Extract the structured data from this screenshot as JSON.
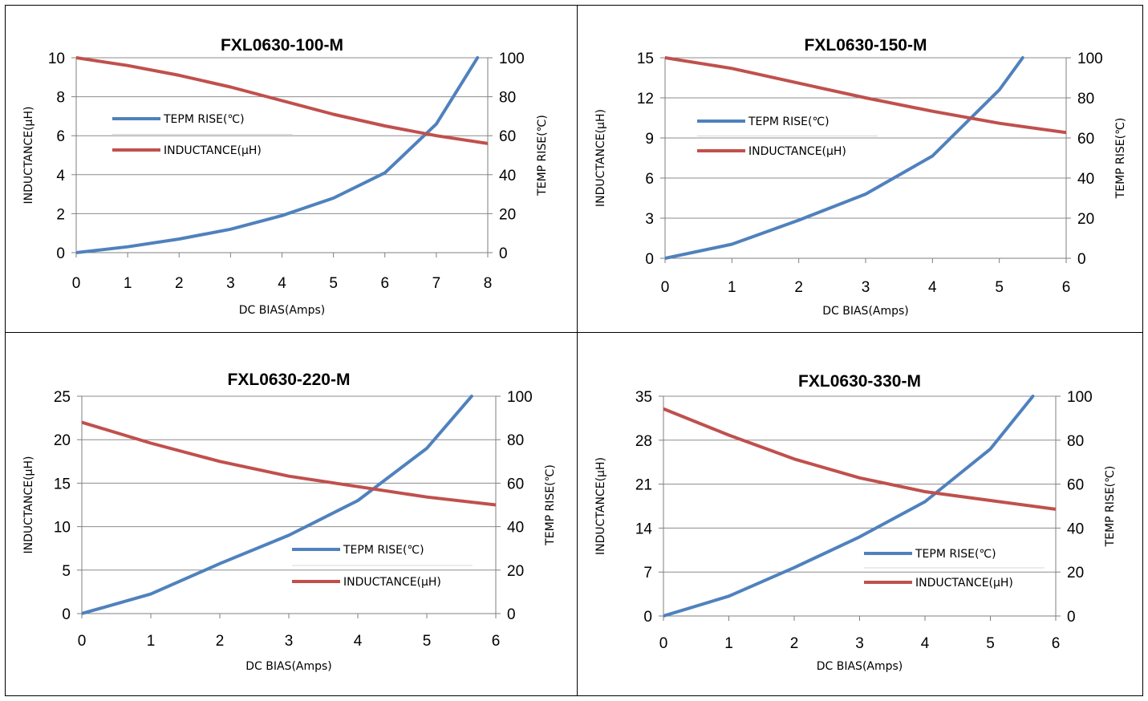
{
  "chart_data": [
    {
      "type": "line",
      "title": "FXL0630-100-M",
      "xlabel": "DC  BIAS(Amps)",
      "ylabel_left": "INDUCTANCE(µH)",
      "ylabel_right": "TEMP RISE(℃)",
      "xlim": [
        0,
        8
      ],
      "x_ticks": [
        0,
        1,
        2,
        3,
        4,
        5,
        6,
        7,
        8
      ],
      "ylim_left": [
        0,
        10
      ],
      "y_ticks_left": [
        0,
        2,
        4,
        6,
        8,
        10
      ],
      "ylim_right": [
        0,
        100
      ],
      "y_ticks_right": [
        0,
        20,
        40,
        60,
        80,
        100
      ],
      "grid": true,
      "legend_position": "middle-left",
      "series": [
        {
          "name": "TEPM RISE(℃)",
          "axis": "right",
          "color": "#4f81bd",
          "x": [
            0,
            1,
            2,
            3,
            4,
            5,
            6,
            7,
            7.8
          ],
          "y": [
            0,
            3,
            7,
            12,
            19,
            28,
            41,
            66,
            100
          ]
        },
        {
          "name": "INDUCTANCE(µH)",
          "axis": "left",
          "color": "#c0504d",
          "x": [
            0,
            1,
            2,
            3,
            4,
            5,
            6,
            7,
            8
          ],
          "y": [
            10,
            9.6,
            9.1,
            8.5,
            7.8,
            7.1,
            6.5,
            6.0,
            5.6
          ]
        }
      ]
    },
    {
      "type": "line",
      "title": "FXL0630-150-M",
      "xlabel": "DC  BIAS(Amps)",
      "ylabel_left": "INDUCTANCE(µH)",
      "ylabel_right": "TEMP RISE(℃)",
      "xlim": [
        0,
        6
      ],
      "x_ticks": [
        0,
        1,
        2,
        3,
        4,
        5,
        6
      ],
      "ylim_left": [
        0,
        15
      ],
      "y_ticks_left": [
        0,
        3,
        6,
        9,
        12,
        15
      ],
      "ylim_right": [
        0,
        100
      ],
      "y_ticks_right": [
        0,
        20,
        40,
        60,
        80,
        100
      ],
      "grid": true,
      "legend_position": "middle-left",
      "series": [
        {
          "name": "TEPM RISE(℃)",
          "axis": "right",
          "color": "#4f81bd",
          "x": [
            0,
            1,
            2,
            3,
            4,
            5,
            5.35
          ],
          "y": [
            0,
            7,
            19,
            32,
            51,
            84,
            100
          ]
        },
        {
          "name": "INDUCTANCE(µH)",
          "axis": "left",
          "color": "#c0504d",
          "x": [
            0,
            1,
            2,
            3,
            4,
            5,
            6
          ],
          "y": [
            15,
            14.2,
            13.1,
            12.0,
            11.0,
            10.1,
            9.4
          ]
        }
      ]
    },
    {
      "type": "line",
      "title": "FXL0630-220-M",
      "xlabel": "DC  BIAS(Amps)",
      "ylabel_left": "INDUCTANCE(µH)",
      "ylabel_right": "TEMP RISE(℃)",
      "xlim": [
        0,
        6
      ],
      "x_ticks": [
        0,
        1,
        2,
        3,
        4,
        5,
        6
      ],
      "ylim_left": [
        0,
        25
      ],
      "y_ticks_left": [
        0,
        5,
        10,
        15,
        20,
        25
      ],
      "ylim_right": [
        0,
        100
      ],
      "y_ticks_right": [
        0,
        20,
        40,
        60,
        80,
        100
      ],
      "grid": true,
      "legend_position": "bottom-right",
      "series": [
        {
          "name": "TEPM RISE(℃)",
          "axis": "right",
          "color": "#4f81bd",
          "x": [
            0,
            1,
            2,
            3,
            4,
            5,
            5.65
          ],
          "y": [
            0,
            9,
            23,
            36,
            52,
            76,
            100
          ]
        },
        {
          "name": "INDUCTANCE(µH)",
          "axis": "left",
          "color": "#c0504d",
          "x": [
            0,
            1,
            2,
            3,
            4,
            5,
            6
          ],
          "y": [
            22,
            19.6,
            17.5,
            15.8,
            14.6,
            13.4,
            12.5
          ]
        }
      ]
    },
    {
      "type": "line",
      "title": "FXL0630-330-M",
      "xlabel": "DC  BIAS(Amps)",
      "ylabel_left": "INDUCTANCE(µH)",
      "ylabel_right": "TEMP RISE(℃)",
      "xlim": [
        0,
        6
      ],
      "x_ticks": [
        0,
        1,
        2,
        3,
        4,
        5,
        6
      ],
      "ylim_left": [
        0,
        35
      ],
      "y_ticks_left": [
        0,
        7,
        14,
        21,
        28,
        35
      ],
      "ylim_right": [
        0,
        100
      ],
      "y_ticks_right": [
        0,
        20,
        40,
        60,
        80,
        100
      ],
      "grid": true,
      "legend_position": "bottom-right",
      "series": [
        {
          "name": "TEPM RISE(℃)",
          "axis": "right",
          "color": "#4f81bd",
          "x": [
            0,
            1,
            2,
            3,
            4,
            5,
            5.65
          ],
          "y": [
            0,
            9,
            22,
            36,
            52,
            76,
            100
          ]
        },
        {
          "name": "INDUCTANCE(µH)",
          "axis": "left",
          "color": "#c0504d",
          "x": [
            0,
            1,
            2,
            3,
            4,
            5,
            6
          ],
          "y": [
            33,
            28.8,
            25.0,
            22.0,
            19.8,
            18.4,
            17.0
          ]
        }
      ]
    }
  ]
}
